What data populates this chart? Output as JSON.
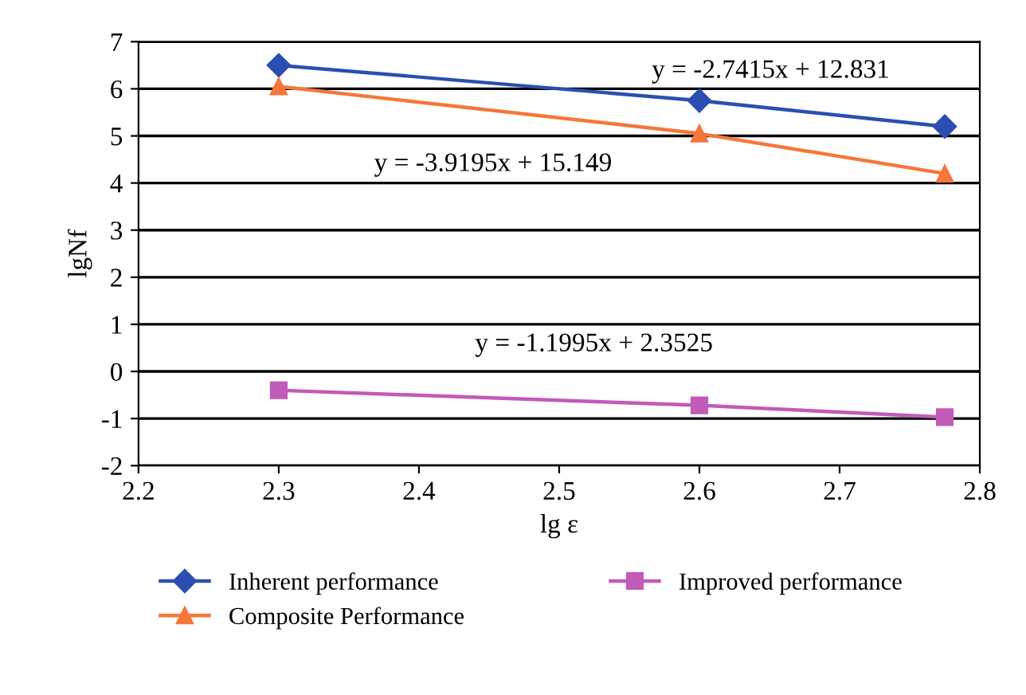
{
  "chart_data": {
    "type": "line",
    "xlabel": "lg ε",
    "ylabel": "lgNf",
    "x": [
      2.3,
      2.6,
      2.775
    ],
    "series": [
      {
        "name": "Inherent performance",
        "color": "#2a4fb0",
        "marker": "diamond",
        "values": [
          6.5,
          5.75,
          5.2
        ]
      },
      {
        "name": "Improved performance",
        "color": "#c25ab8",
        "marker": "square",
        "values": [
          -0.4,
          -0.72,
          -0.97
        ]
      },
      {
        "name": "Composite Performance",
        "color": "#f5773a",
        "marker": "triangle",
        "values": [
          6.05,
          5.05,
          4.2
        ]
      }
    ],
    "xlim": [
      2.2,
      2.8
    ],
    "xticks": [
      2.2,
      2.3,
      2.4,
      2.5,
      2.6,
      2.7,
      2.8
    ],
    "ylim": [
      -2,
      7
    ],
    "yticks": [
      -2,
      -1,
      0,
      1,
      2,
      3,
      4,
      5,
      6,
      7
    ],
    "grid": "y",
    "legend": "bottom",
    "annotations": [
      "y = -2.7415x + 12.831",
      "y = -3.9195x + 15.149",
      "y = -1.1995x + 2.3525"
    ]
  }
}
